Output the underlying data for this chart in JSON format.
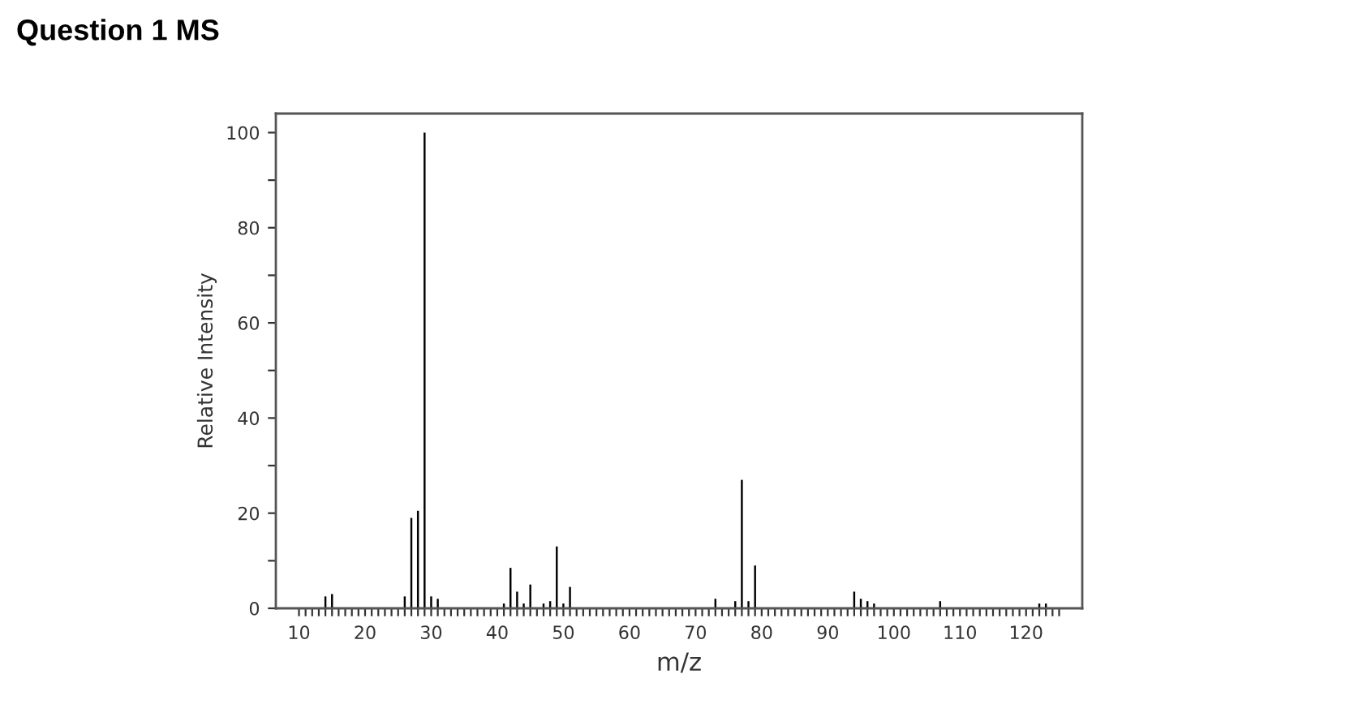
{
  "chart_data": {
    "type": "bar",
    "title": "Question 1 MS",
    "xlabel": "m/z",
    "ylabel": "Relative Intensity",
    "x": [
      14,
      15,
      26,
      27,
      28,
      29,
      30,
      31,
      41,
      42,
      43,
      44,
      45,
      47,
      48,
      49,
      50,
      51,
      73,
      76,
      77,
      78,
      79,
      94,
      95,
      96,
      97,
      107,
      122,
      123
    ],
    "values": [
      2.5,
      3,
      2.5,
      19,
      20.5,
      100,
      2.5,
      2,
      1,
      8.5,
      3.5,
      1,
      5,
      1,
      1.5,
      13,
      1,
      4.5,
      2,
      1.5,
      27,
      1.5,
      9,
      3.5,
      2,
      1.5,
      1,
      1.5,
      1,
      1
    ],
    "color": "#000000",
    "xlim": [
      6.5,
      128.5
    ],
    "ylim": [
      0,
      104
    ],
    "xticks": [
      10,
      {
        "value": 11,
        "label": null
      },
      {
        "value": 12,
        "label": null
      },
      {
        "value": 13,
        "label": null
      },
      {
        "value": 14,
        "label": null
      },
      {
        "value": 15,
        "label": null
      },
      {
        "value": 16,
        "label": null
      },
      {
        "value": 17,
        "label": null
      },
      {
        "value": 18,
        "label": null
      },
      {
        "value": 19,
        "label": null
      },
      20,
      {
        "value": 21,
        "label": null
      },
      {
        "value": 22,
        "label": null
      },
      {
        "value": 23,
        "label": null
      },
      {
        "value": 24,
        "label": null
      },
      {
        "value": 25,
        "label": null
      },
      {
        "value": 26,
        "label": null
      },
      {
        "value": 27,
        "label": null
      },
      {
        "value": 28,
        "label": null
      },
      {
        "value": 29,
        "label": null
      },
      30,
      {
        "value": 31,
        "label": null
      },
      {
        "value": 32,
        "label": null
      },
      {
        "value": 33,
        "label": null
      },
      {
        "value": 34,
        "label": null
      },
      {
        "value": 35,
        "label": null
      },
      {
        "value": 36,
        "label": null
      },
      {
        "value": 37,
        "label": null
      },
      {
        "value": 38,
        "label": null
      },
      {
        "value": 39,
        "label": null
      },
      40,
      {
        "value": 41,
        "label": null
      },
      {
        "value": 42,
        "label": null
      },
      {
        "value": 43,
        "label": null
      },
      {
        "value": 44,
        "label": null
      },
      {
        "value": 45,
        "label": null
      },
      {
        "value": 46,
        "label": null
      },
      {
        "value": 47,
        "label": null
      },
      {
        "value": 48,
        "label": null
      },
      {
        "value": 49,
        "label": null
      },
      50,
      {
        "value": 51,
        "label": null
      },
      {
        "value": 52,
        "label": null
      },
      {
        "value": 53,
        "label": null
      },
      {
        "value": 54,
        "label": null
      },
      {
        "value": 55,
        "label": null
      },
      {
        "value": 56,
        "label": null
      },
      {
        "value": 57,
        "label": null
      },
      {
        "value": 58,
        "label": null
      },
      {
        "value": 59,
        "label": null
      },
      60,
      {
        "value": 61,
        "label": null
      },
      {
        "value": 62,
        "label": null
      },
      {
        "value": 63,
        "label": null
      },
      {
        "value": 64,
        "label": null
      },
      {
        "value": 65,
        "label": null
      },
      {
        "value": 66,
        "label": null
      },
      {
        "value": 67,
        "label": null
      },
      {
        "value": 68,
        "label": null
      },
      {
        "value": 69,
        "label": null
      },
      70,
      {
        "value": 71,
        "label": null
      },
      {
        "value": 72,
        "label": null
      },
      {
        "value": 73,
        "label": null
      },
      {
        "value": 74,
        "label": null
      },
      {
        "value": 75,
        "label": null
      },
      {
        "value": 76,
        "label": null
      },
      {
        "value": 77,
        "label": null
      },
      {
        "value": 78,
        "label": null
      },
      {
        "value": 79,
        "label": null
      },
      80,
      {
        "value": 81,
        "label": null
      },
      {
        "value": 82,
        "label": null
      },
      {
        "value": 83,
        "label": null
      },
      {
        "value": 84,
        "label": null
      },
      {
        "value": 85,
        "label": null
      },
      {
        "value": 86,
        "label": null
      },
      {
        "value": 87,
        "label": null
      },
      {
        "value": 88,
        "label": null
      },
      {
        "value": 89,
        "label": null
      },
      90,
      {
        "value": 91,
        "label": null
      },
      {
        "value": 92,
        "label": null
      },
      {
        "value": 93,
        "label": null
      },
      {
        "value": 94,
        "label": null
      },
      {
        "value": 95,
        "label": null
      },
      {
        "value": 96,
        "label": null
      },
      {
        "value": 97,
        "label": null
      },
      {
        "value": 98,
        "label": null
      },
      {
        "value": 99,
        "label": null
      },
      100,
      {
        "value": 101,
        "label": null
      },
      {
        "value": 102,
        "label": null
      },
      {
        "value": 103,
        "label": null
      },
      {
        "value": 104,
        "label": null
      },
      {
        "value": 105,
        "label": null
      },
      {
        "value": 106,
        "label": null
      },
      {
        "value": 107,
        "label": null
      },
      {
        "value": 108,
        "label": null
      },
      {
        "value": 109,
        "label": null
      },
      110,
      {
        "value": 111,
        "label": null
      },
      {
        "value": 112,
        "label": null
      },
      {
        "value": 113,
        "label": null
      },
      {
        "value": 114,
        "label": null
      },
      {
        "value": 115,
        "label": null
      },
      {
        "value": 116,
        "label": null
      },
      {
        "value": 117,
        "label": null
      },
      {
        "value": 118,
        "label": null
      },
      {
        "value": 119,
        "label": null
      },
      120,
      {
        "value": 121,
        "label": null
      },
      {
        "value": 122,
        "label": null
      },
      {
        "value": 123,
        "label": null
      },
      {
        "value": 124,
        "label": null
      },
      {
        "value": 125,
        "label": null
      }
    ],
    "yticks": [
      0,
      {
        "value": 10,
        "label": null
      },
      20,
      {
        "value": 30,
        "label": null
      },
      40,
      {
        "value": 50,
        "label": null
      },
      60,
      {
        "value": 70,
        "label": null
      },
      80,
      {
        "value": 90,
        "label": null
      },
      100
    ],
    "grid": false,
    "legend": false
  }
}
